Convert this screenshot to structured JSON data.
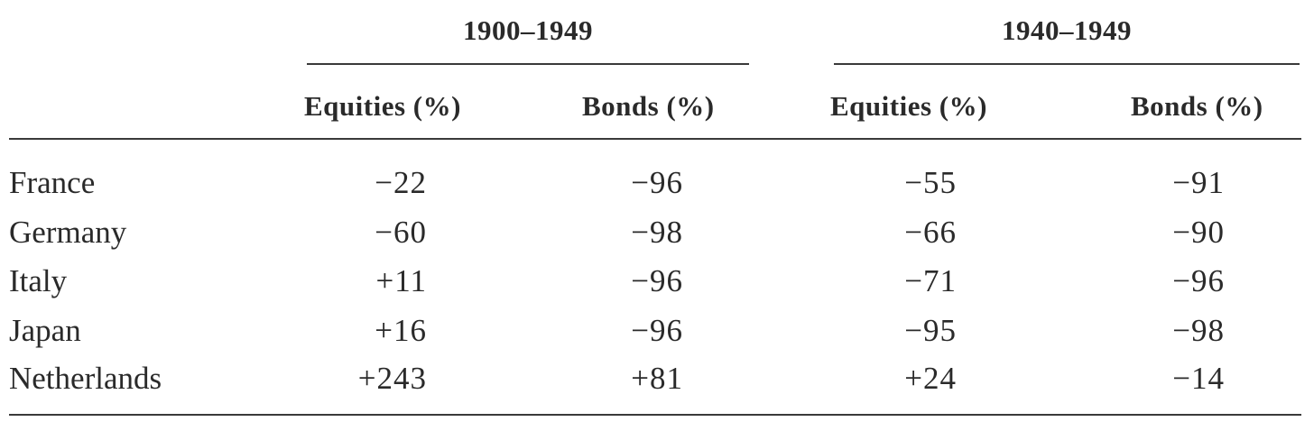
{
  "table": {
    "groups": [
      {
        "title": "1900–1949",
        "columns": [
          "Equities (%)",
          "Bonds (%)"
        ]
      },
      {
        "title": "1940–1949",
        "columns": [
          "Equities (%)",
          "Bonds (%)"
        ]
      }
    ],
    "rows": [
      {
        "country": "France",
        "values": [
          "−22",
          "−96",
          "−55",
          "−91"
        ]
      },
      {
        "country": "Germany",
        "values": [
          "−60",
          "−98",
          "−66",
          "−90"
        ]
      },
      {
        "country": "Italy",
        "values": [
          "+11",
          "−96",
          "−71",
          "−96"
        ]
      },
      {
        "country": "Japan",
        "values": [
          "+16",
          "−96",
          "−95",
          "−98"
        ]
      },
      {
        "country": "Netherlands",
        "values": [
          "+243",
          "+81",
          "+24",
          "−14"
        ]
      }
    ]
  }
}
